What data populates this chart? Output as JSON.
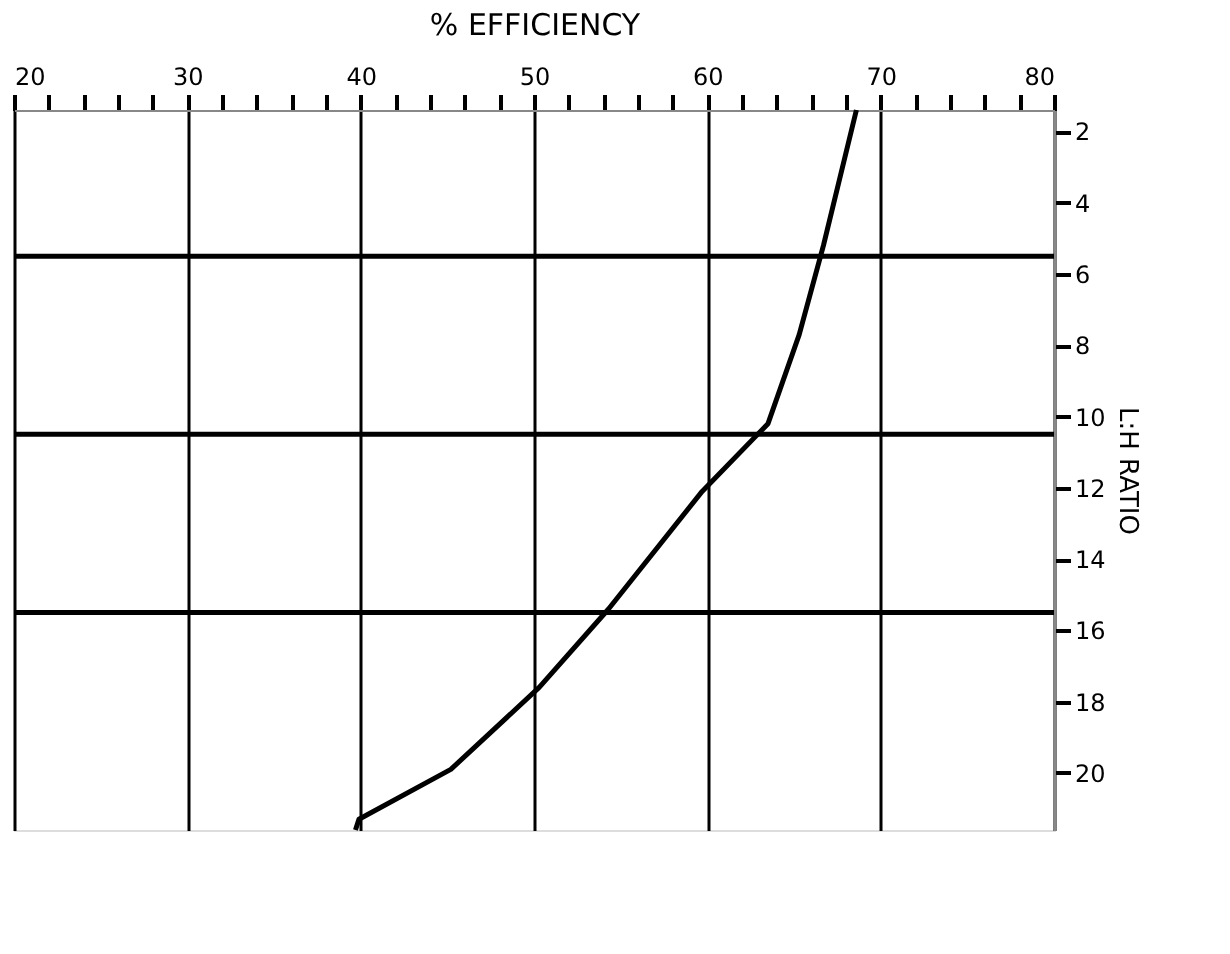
{
  "chart_data": {
    "type": "line",
    "xlabel": "% EFFICIENCY",
    "ylabel": "L:H RATIO",
    "series": [
      {
        "color": "#000000",
        "x": [
          68.6,
          66.7,
          65.3,
          63.5,
          59.7,
          54.3,
          50.3,
          45.2,
          39.9,
          39.7
        ],
        "values": [
          1.4,
          5.2,
          7.7,
          10.2,
          12.1,
          15.4,
          17.6,
          19.9,
          21.3,
          21.6
        ]
      }
    ],
    "xlim": [
      20,
      80
    ],
    "xticks": [
      20,
      {
        "value": 22,
        "label": null
      },
      {
        "value": 24,
        "label": null
      },
      {
        "value": 26,
        "label": null
      },
      {
        "value": 28,
        "label": null
      },
      30,
      {
        "value": 32,
        "label": null
      },
      {
        "value": 34,
        "label": null
      },
      {
        "value": 36,
        "label": null
      },
      {
        "value": 38,
        "label": null
      },
      40,
      {
        "value": 42,
        "label": null
      },
      {
        "value": 44,
        "label": null
      },
      {
        "value": 46,
        "label": null
      },
      {
        "value": 48,
        "label": null
      },
      50,
      {
        "value": 52,
        "label": null
      },
      {
        "value": 54,
        "label": null
      },
      {
        "value": 56,
        "label": null
      },
      {
        "value": 58,
        "label": null
      },
      60,
      {
        "value": 62,
        "label": null
      },
      {
        "value": 64,
        "label": null
      },
      {
        "value": 66,
        "label": null
      },
      {
        "value": 68,
        "label": null
      },
      70,
      {
        "value": 72,
        "label": null
      },
      {
        "value": 74,
        "label": null
      },
      {
        "value": 76,
        "label": null
      },
      {
        "value": 78,
        "label": null
      },
      80
    ],
    "ylim": [
      21.6,
      1.4
    ],
    "yticks": [
      2,
      4,
      6,
      8,
      10,
      12,
      14,
      16,
      18,
      20
    ],
    "ref_lines": [
      {
        "axis": "y",
        "value": 5.5,
        "label": null
      },
      {
        "axis": "y",
        "value": 10.5,
        "label": null
      },
      {
        "axis": "y",
        "value": 15.5,
        "label": null
      }
    ],
    "grid": "x",
    "marker": "none",
    "line_style": "solid"
  }
}
